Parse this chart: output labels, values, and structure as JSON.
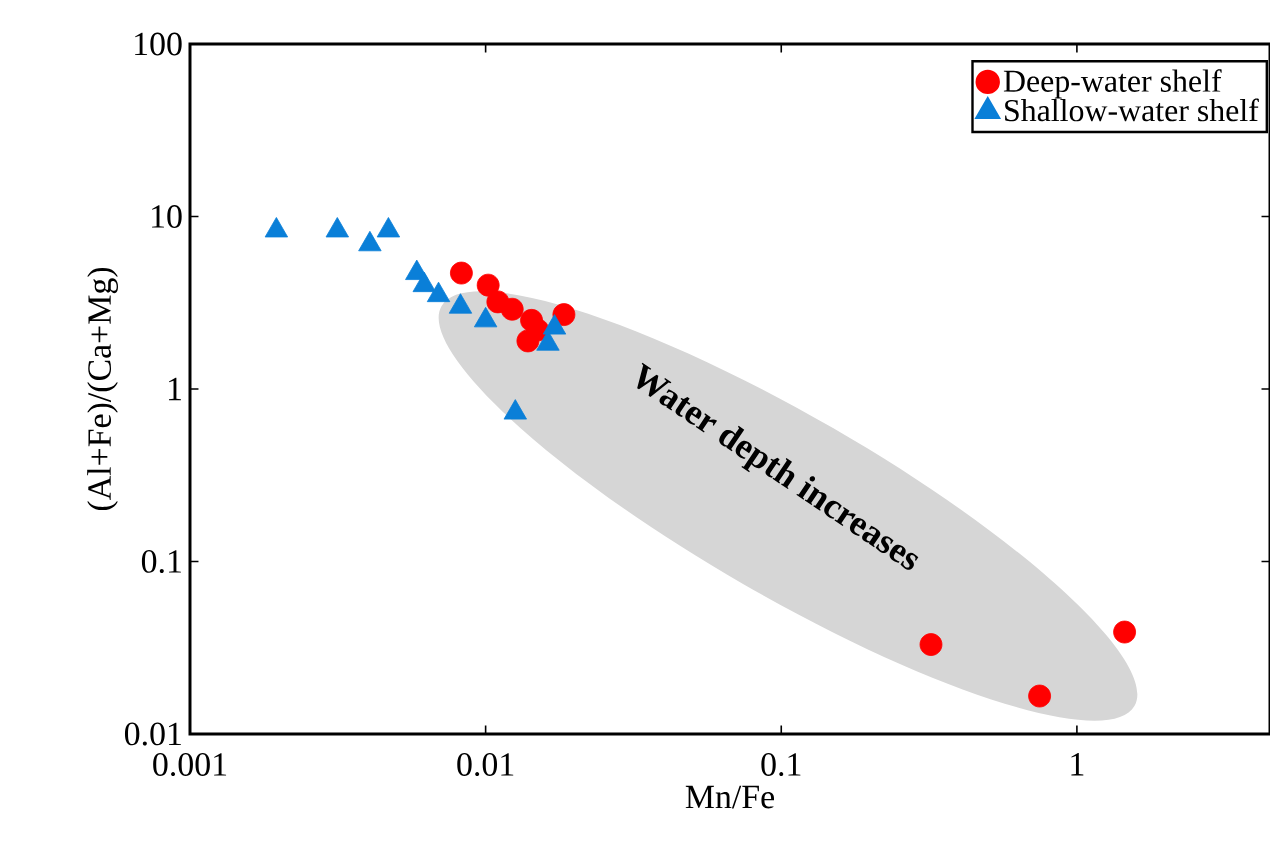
{
  "chart_data": {
    "type": "scatter",
    "xlabel": "Mn/Fe",
    "ylabel": "(Al+Fe)/(Ca+Mg)",
    "log": "xy",
    "xlim": [
      0.001,
      4.5
    ],
    "ylim": [
      0.01,
      100
    ],
    "xticks": [
      0.001,
      0.01,
      0.1,
      1
    ],
    "yticks": [
      0.01,
      0.1,
      1,
      10,
      100
    ],
    "grid": false,
    "legend": "top right",
    "annotations": [
      "Water depth increases"
    ],
    "series": [
      {
        "name": "Deep-water shelf",
        "color": "#ff0000",
        "marker": "circle",
        "x": [
          0.00828,
          0.0102,
          0.011,
          0.0123,
          0.0143,
          0.0139,
          0.015,
          0.0184,
          0.321,
          0.748,
          1.45
        ],
        "values": [
          4.7,
          4.0,
          3.2,
          2.9,
          2.5,
          1.9,
          2.2,
          2.7,
          0.033,
          0.0166,
          0.039
        ]
      },
      {
        "name": "Shallow-water shelf",
        "color": "#0a7fd8",
        "marker": "triangle",
        "x": [
          0.00196,
          0.00315,
          0.00406,
          0.00469,
          0.00585,
          0.0062,
          0.00693,
          0.00822,
          0.01,
          0.0126,
          0.01625,
          0.0171
        ],
        "values": [
          8.3,
          8.3,
          6.9,
          8.3,
          4.7,
          4.0,
          3.5,
          3.0,
          2.5,
          0.73,
          1.83,
          2.27
        ]
      }
    ]
  }
}
